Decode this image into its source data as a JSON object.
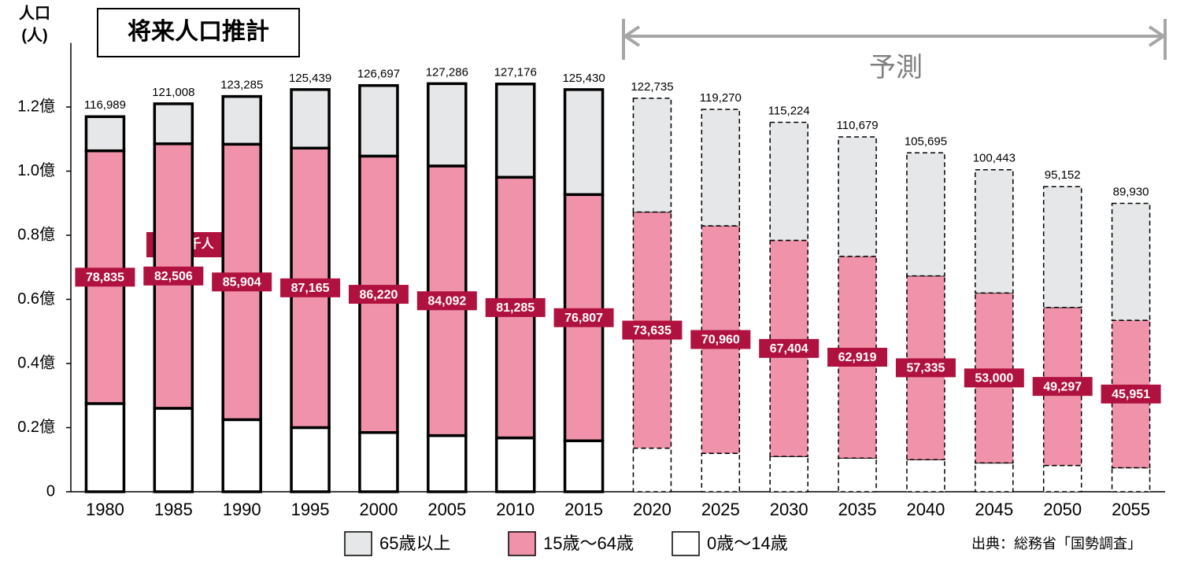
{
  "chart_data": {
    "type": "stacked_bar",
    "title": "将来人口推計",
    "ylabel": [
      "人口",
      "(人)"
    ],
    "categories": [
      "1980",
      "1985",
      "1990",
      "1995",
      "2000",
      "2005",
      "2010",
      "2015",
      "2020",
      "2025",
      "2030",
      "2035",
      "2040",
      "2045",
      "2050",
      "2055"
    ],
    "series": [
      {
        "name": "0歳～14歳",
        "color": "#ffffff",
        "values": [
          27507,
          26033,
          22486,
          20014,
          18472,
          17521,
          16803,
          15887,
          13600,
          12000,
          11000,
          10500,
          10000,
          9000,
          8200,
          7500
        ]
      },
      {
        "name": "15歳～64歳",
        "color": "#f093aa",
        "values": [
          78835,
          82506,
          85904,
          87165,
          86220,
          84092,
          81285,
          76807,
          73635,
          70960,
          67404,
          62919,
          57335,
          53000,
          49297,
          45951
        ],
        "value_labels": [
          "78,835",
          "82,506",
          "85,904",
          "87,165",
          "86,220",
          "84,092",
          "81,285",
          "76,807",
          "73,635",
          "70,960",
          "67,404",
          "62,919",
          "57,335",
          "53,000",
          "49,297",
          "45,951"
        ]
      },
      {
        "name": "65歳以上",
        "color": "#e6e7e9",
        "values": [
          10647,
          12469,
          14895,
          18260,
          22005,
          25673,
          29088,
          32736,
          35500,
          36310,
          36820,
          37260,
          38360,
          38443,
          37655,
          36479
        ]
      }
    ],
    "totals": [
      116989,
      121008,
      123285,
      125439,
      126697,
      127286,
      127176,
      125430,
      122735,
      119270,
      115224,
      110679,
      105695,
      100443,
      95152,
      89930
    ],
    "total_labels": [
      "116,989",
      "121,008",
      "123,285",
      "125,439",
      "126,697",
      "127,286",
      "127,176",
      "125,430",
      "122,735",
      "119,270",
      "115,224",
      "110,679",
      "105,695",
      "100,443",
      "95,152",
      "89,930"
    ],
    "ylim": [
      0,
      140000
    ],
    "yticks": [
      0,
      {
        "value": 20000,
        "label": "0.2億"
      },
      {
        "value": 40000,
        "label": "0.4億"
      },
      {
        "value": 60000,
        "label": "0.6億"
      },
      {
        "value": 80000,
        "label": "0.8億"
      },
      {
        "value": 100000,
        "label": "1.0億"
      },
      {
        "value": 120000,
        "label": "1.2億"
      }
    ],
    "unit_note": "単位:千人",
    "forecast_label": "予測",
    "forecast_start": 2020,
    "source": "出典：総務省「国勢調査」"
  }
}
